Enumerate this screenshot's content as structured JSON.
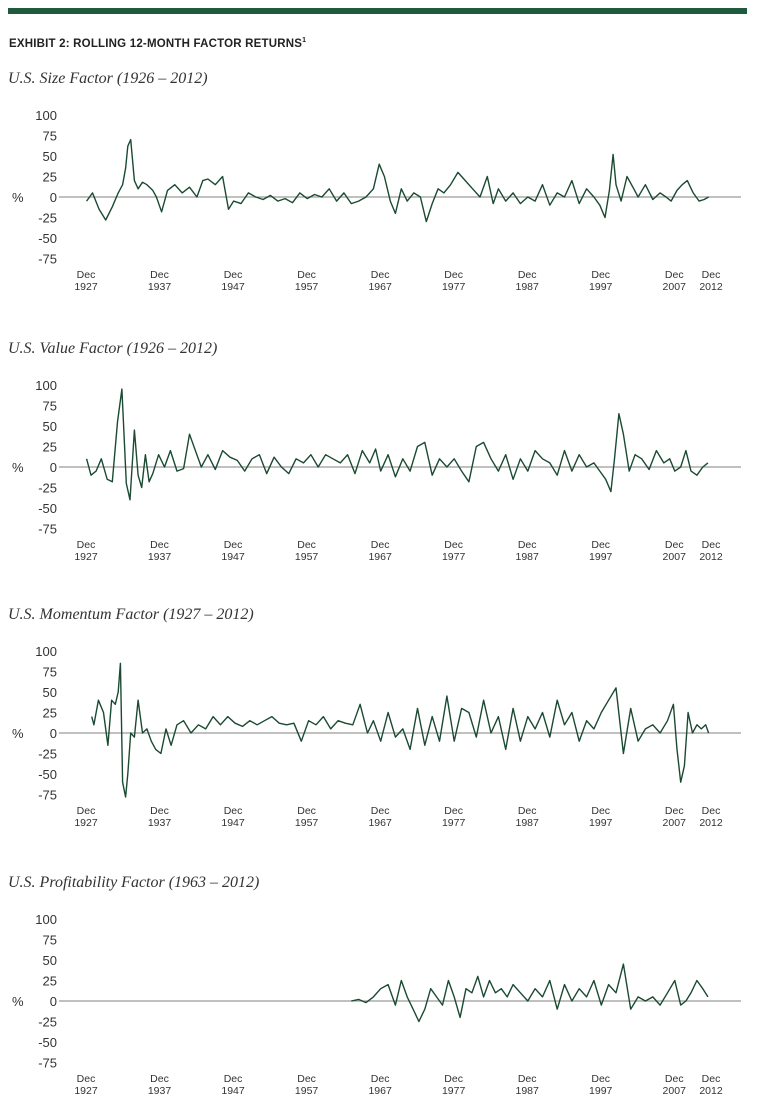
{
  "header": {
    "exhibit_title": "EXHIBIT 2: ROLLING 12-MONTH FACTOR RETURNS",
    "footnote_marker": "1"
  },
  "theme": {
    "accent": "#1d5a3e",
    "series_color": "#1b4a32",
    "zero_line_color": "#9a9a9a"
  },
  "chart_data": [
    {
      "type": "line",
      "title": "U.S. Size Factor (1926 – 2012)",
      "ylabel": "%",
      "ylim": [
        -75,
        100
      ],
      "yticks": [
        100,
        75,
        50,
        25,
        0,
        -25,
        -50,
        -75
      ],
      "xlim": [
        1927.92,
        2012.92
      ],
      "xticks": [
        {
          "x": 1927.92,
          "l1": "Dec",
          "l2": "1927"
        },
        {
          "x": 1937.92,
          "l1": "Dec",
          "l2": "1937"
        },
        {
          "x": 1947.92,
          "l1": "Dec",
          "l2": "1947"
        },
        {
          "x": 1957.92,
          "l1": "Dec",
          "l2": "1957"
        },
        {
          "x": 1967.92,
          "l1": "Dec",
          "l2": "1967"
        },
        {
          "x": 1977.92,
          "l1": "Dec",
          "l2": "1977"
        },
        {
          "x": 1987.92,
          "l1": "Dec",
          "l2": "1987"
        },
        {
          "x": 1997.92,
          "l1": "Dec",
          "l2": "1997"
        },
        {
          "x": 2007.92,
          "l1": "Dec",
          "l2": "2007"
        },
        {
          "x": 2012.92,
          "l1": "Dec",
          "l2": "2012"
        }
      ],
      "series": [
        {
          "x": [
            1928.0,
            1928.8,
            1929.7,
            1930.6,
            1931.5,
            1932.3,
            1932.9,
            1933.3,
            1933.6,
            1934.0,
            1934.5,
            1935.0,
            1935.6,
            1936.2,
            1937.0,
            1937.5,
            1938.2,
            1939.0,
            1940.0,
            1941.0,
            1942.0,
            1943.0,
            1943.8,
            1944.5,
            1945.5,
            1946.5,
            1947.3,
            1948.0,
            1949.0,
            1950.0,
            1951.0,
            1952.0,
            1953.0,
            1954.0,
            1955.0,
            1956.0,
            1957.0,
            1958.0,
            1959.0,
            1960.0,
            1961.0,
            1962.0,
            1963.0,
            1964.0,
            1965.0,
            1966.0,
            1967.0,
            1967.8,
            1968.5,
            1969.3,
            1970.0,
            1970.8,
            1971.6,
            1972.5,
            1973.4,
            1974.2,
            1975.0,
            1975.8,
            1976.6,
            1977.5,
            1978.5,
            1979.5,
            1980.5,
            1981.5,
            1982.5,
            1983.3,
            1984.0,
            1985.0,
            1986.0,
            1987.0,
            1988.0,
            1989.0,
            1990.0,
            1991.0,
            1992.0,
            1993.0,
            1994.0,
            1995.0,
            1996.0,
            1997.0,
            1997.8,
            1998.5,
            1999.1,
            1999.6,
            2000.0,
            2000.7,
            2001.5,
            2002.3,
            2003.0,
            2004.0,
            2005.0,
            2006.0,
            2006.8,
            2007.5,
            2008.3,
            2009.0,
            2009.7,
            2010.5,
            2011.3,
            2012.0,
            2012.6
          ],
          "y": [
            -5,
            5,
            -15,
            -28,
            -12,
            5,
            15,
            35,
            62,
            70,
            20,
            10,
            18,
            15,
            8,
            0,
            -18,
            8,
            15,
            5,
            12,
            0,
            20,
            22,
            15,
            25,
            -15,
            -5,
            -8,
            5,
            0,
            -3,
            2,
            -5,
            -2,
            -7,
            5,
            -2,
            3,
            0,
            10,
            -5,
            5,
            -8,
            -5,
            0,
            10,
            40,
            25,
            -5,
            -20,
            10,
            -5,
            5,
            0,
            -30,
            -8,
            10,
            5,
            15,
            30,
            20,
            10,
            0,
            25,
            -8,
            10,
            -5,
            5,
            -8,
            0,
            -5,
            15,
            -10,
            5,
            0,
            20,
            -8,
            10,
            0,
            -10,
            -25,
            8,
            52,
            15,
            -5,
            25,
            12,
            0,
            15,
            -3,
            5,
            0,
            -5,
            8,
            15,
            20,
            5,
            -5,
            -3,
            0
          ]
        }
      ]
    },
    {
      "type": "line",
      "title": "U.S. Value Factor (1926 – 2012)",
      "ylabel": "%",
      "ylim": [
        -75,
        100
      ],
      "yticks": [
        100,
        75,
        50,
        25,
        0,
        -25,
        -50,
        -75
      ],
      "xlim": [
        1927.92,
        2012.92
      ],
      "xticks": [
        {
          "x": 1927.92,
          "l1": "Dec",
          "l2": "1927"
        },
        {
          "x": 1937.92,
          "l1": "Dec",
          "l2": "1937"
        },
        {
          "x": 1947.92,
          "l1": "Dec",
          "l2": "1947"
        },
        {
          "x": 1957.92,
          "l1": "Dec",
          "l2": "1957"
        },
        {
          "x": 1967.92,
          "l1": "Dec",
          "l2": "1967"
        },
        {
          "x": 1977.92,
          "l1": "Dec",
          "l2": "1977"
        },
        {
          "x": 1987.92,
          "l1": "Dec",
          "l2": "1987"
        },
        {
          "x": 1997.92,
          "l1": "Dec",
          "l2": "1997"
        },
        {
          "x": 2007.92,
          "l1": "Dec",
          "l2": "2007"
        },
        {
          "x": 2012.92,
          "l1": "Dec",
          "l2": "2012"
        }
      ],
      "series": [
        {
          "x": [
            1928.0,
            1928.6,
            1929.3,
            1930.0,
            1930.8,
            1931.5,
            1932.2,
            1932.8,
            1933.4,
            1933.9,
            1934.5,
            1935.0,
            1935.5,
            1936.0,
            1936.5,
            1937.0,
            1937.8,
            1938.6,
            1939.4,
            1940.3,
            1941.2,
            1942.0,
            1942.8,
            1943.6,
            1944.5,
            1945.5,
            1946.5,
            1947.5,
            1948.5,
            1949.5,
            1950.5,
            1951.5,
            1952.5,
            1953.5,
            1954.5,
            1955.5,
            1956.5,
            1957.5,
            1958.5,
            1959.5,
            1960.5,
            1961.5,
            1962.5,
            1963.5,
            1964.5,
            1965.5,
            1966.5,
            1967.3,
            1968.0,
            1969.0,
            1970.0,
            1971.0,
            1972.0,
            1973.0,
            1974.0,
            1975.0,
            1976.0,
            1977.0,
            1978.0,
            1979.0,
            1980.0,
            1981.0,
            1982.0,
            1983.0,
            1984.0,
            1985.0,
            1986.0,
            1987.0,
            1988.0,
            1989.0,
            1990.0,
            1991.0,
            1992.0,
            1993.0,
            1994.0,
            1995.0,
            1996.0,
            1997.0,
            1997.8,
            1998.6,
            1999.3,
            1999.8,
            2000.4,
            2001.0,
            2001.8,
            2002.6,
            2003.5,
            2004.5,
            2005.5,
            2006.5,
            2007.3,
            2008.0,
            2008.8,
            2009.5,
            2010.2,
            2011.0,
            2011.8,
            2012.5
          ],
          "y": [
            10,
            -10,
            -5,
            10,
            -15,
            -18,
            55,
            95,
            -20,
            -40,
            45,
            -10,
            -25,
            15,
            -18,
            -8,
            15,
            0,
            20,
            -5,
            -2,
            40,
            20,
            0,
            15,
            -3,
            20,
            12,
            8,
            -5,
            10,
            15,
            -8,
            12,
            0,
            -8,
            10,
            5,
            15,
            0,
            15,
            10,
            5,
            15,
            -8,
            20,
            5,
            22,
            -5,
            15,
            -12,
            10,
            -5,
            25,
            30,
            -10,
            10,
            0,
            10,
            -5,
            -18,
            25,
            30,
            10,
            -5,
            15,
            -15,
            10,
            -5,
            20,
            10,
            5,
            -10,
            20,
            -5,
            15,
            0,
            5,
            -5,
            -15,
            -30,
            10,
            65,
            40,
            -5,
            15,
            10,
            -3,
            20,
            5,
            10,
            -5,
            0,
            20,
            -5,
            -10,
            0,
            5
          ]
        }
      ]
    },
    {
      "type": "line",
      "title": "U.S. Momentum Factor (1927 – 2012)",
      "ylabel": "%",
      "ylim": [
        -75,
        100
      ],
      "yticks": [
        100,
        75,
        50,
        25,
        0,
        -25,
        -50,
        -75
      ],
      "xlim": [
        1927.92,
        2012.92
      ],
      "xticks": [
        {
          "x": 1927.92,
          "l1": "Dec",
          "l2": "1927"
        },
        {
          "x": 1937.92,
          "l1": "Dec",
          "l2": "1937"
        },
        {
          "x": 1947.92,
          "l1": "Dec",
          "l2": "1947"
        },
        {
          "x": 1957.92,
          "l1": "Dec",
          "l2": "1957"
        },
        {
          "x": 1967.92,
          "l1": "Dec",
          "l2": "1967"
        },
        {
          "x": 1977.92,
          "l1": "Dec",
          "l2": "1977"
        },
        {
          "x": 1987.92,
          "l1": "Dec",
          "l2": "1987"
        },
        {
          "x": 1997.92,
          "l1": "Dec",
          "l2": "1997"
        },
        {
          "x": 2007.92,
          "l1": "Dec",
          "l2": "2007"
        },
        {
          "x": 2012.92,
          "l1": "Dec",
          "l2": "2012"
        }
      ],
      "series": [
        {
          "x": [
            1928.7,
            1929.0,
            1929.6,
            1930.3,
            1930.9,
            1931.4,
            1931.9,
            1932.3,
            1932.6,
            1932.9,
            1933.3,
            1933.6,
            1934.0,
            1934.5,
            1935.0,
            1935.6,
            1936.2,
            1936.8,
            1937.4,
            1938.1,
            1938.8,
            1939.5,
            1940.3,
            1941.2,
            1942.2,
            1943.2,
            1944.2,
            1945.2,
            1946.2,
            1947.2,
            1948.2,
            1949.2,
            1950.2,
            1951.2,
            1952.2,
            1953.2,
            1954.2,
            1955.2,
            1956.2,
            1957.2,
            1958.2,
            1959.2,
            1960.2,
            1961.2,
            1962.2,
            1963.2,
            1964.2,
            1965.2,
            1966.2,
            1967.0,
            1968.0,
            1969.0,
            1970.0,
            1971.0,
            1972.0,
            1973.0,
            1974.0,
            1975.0,
            1976.0,
            1977.0,
            1978.0,
            1979.0,
            1980.0,
            1981.0,
            1982.0,
            1983.0,
            1984.0,
            1985.0,
            1986.0,
            1987.0,
            1988.0,
            1989.0,
            1990.0,
            1991.0,
            1992.0,
            1993.0,
            1994.0,
            1995.0,
            1996.0,
            1997.0,
            1998.0,
            1999.0,
            2000.0,
            2001.0,
            2002.0,
            2003.0,
            2004.0,
            2005.0,
            2006.0,
            2007.0,
            2007.8,
            2008.3,
            2008.8,
            2009.3,
            2009.8,
            2010.4,
            2011.0,
            2011.6,
            2012.2,
            2012.6
          ],
          "y": [
            20,
            10,
            40,
            25,
            -15,
            40,
            35,
            50,
            85,
            -60,
            -78,
            -50,
            0,
            -5,
            40,
            0,
            5,
            -10,
            -20,
            -25,
            5,
            -15,
            10,
            15,
            0,
            10,
            5,
            20,
            10,
            20,
            12,
            8,
            15,
            10,
            15,
            20,
            12,
            10,
            12,
            -10,
            15,
            10,
            20,
            5,
            15,
            12,
            10,
            35,
            0,
            15,
            -10,
            25,
            -5,
            5,
            -20,
            30,
            -15,
            20,
            -10,
            45,
            -10,
            30,
            25,
            -5,
            40,
            0,
            20,
            -20,
            30,
            -10,
            20,
            5,
            25,
            -5,
            40,
            10,
            25,
            -10,
            15,
            5,
            25,
            40,
            55,
            -25,
            30,
            -10,
            5,
            10,
            0,
            15,
            35,
            -20,
            -60,
            -40,
            25,
            0,
            10,
            5,
            10,
            0
          ]
        }
      ]
    },
    {
      "type": "line",
      "title": "U.S. Profitability Factor (1963 – 2012)",
      "ylabel": "%",
      "ylim": [
        -75,
        100
      ],
      "yticks": [
        100,
        75,
        50,
        25,
        0,
        -25,
        -50,
        -75
      ],
      "xlim": [
        1927.92,
        2012.92
      ],
      "xticks": [
        {
          "x": 1927.92,
          "l1": "Dec",
          "l2": "1927"
        },
        {
          "x": 1937.92,
          "l1": "Dec",
          "l2": "1937"
        },
        {
          "x": 1947.92,
          "l1": "Dec",
          "l2": "1947"
        },
        {
          "x": 1957.92,
          "l1": "Dec",
          "l2": "1957"
        },
        {
          "x": 1967.92,
          "l1": "Dec",
          "l2": "1967"
        },
        {
          "x": 1977.92,
          "l1": "Dec",
          "l2": "1977"
        },
        {
          "x": 1987.92,
          "l1": "Dec",
          "l2": "1987"
        },
        {
          "x": 1997.92,
          "l1": "Dec",
          "l2": "1997"
        },
        {
          "x": 2007.92,
          "l1": "Dec",
          "l2": "2007"
        },
        {
          "x": 2012.92,
          "l1": "Dec",
          "l2": "2012"
        }
      ],
      "series": [
        {
          "x": [
            1964.0,
            1965.0,
            1966.0,
            1967.0,
            1968.0,
            1969.0,
            1970.0,
            1970.8,
            1971.6,
            1972.4,
            1973.2,
            1974.0,
            1974.8,
            1975.6,
            1976.4,
            1977.2,
            1978.0,
            1978.8,
            1979.6,
            1980.4,
            1981.2,
            1982.0,
            1982.8,
            1983.6,
            1984.4,
            1985.2,
            1986.0,
            1987.0,
            1988.0,
            1989.0,
            1990.0,
            1991.0,
            1992.0,
            1993.0,
            1994.0,
            1995.0,
            1996.0,
            1997.0,
            1998.0,
            1999.0,
            2000.0,
            2001.0,
            2002.0,
            2003.0,
            2004.0,
            2005.0,
            2006.0,
            2007.0,
            2008.0,
            2008.8,
            2009.5,
            2010.2,
            2011.0,
            2011.8,
            2012.5
          ],
          "y": [
            0,
            2,
            -2,
            5,
            15,
            20,
            -5,
            25,
            5,
            -10,
            -25,
            -10,
            15,
            5,
            -5,
            25,
            5,
            -20,
            15,
            10,
            30,
            5,
            25,
            10,
            15,
            5,
            20,
            10,
            0,
            15,
            5,
            25,
            -10,
            20,
            0,
            15,
            5,
            25,
            -5,
            20,
            10,
            45,
            -10,
            5,
            0,
            5,
            -5,
            10,
            25,
            -5,
            0,
            10,
            25,
            15,
            5
          ]
        }
      ]
    }
  ]
}
